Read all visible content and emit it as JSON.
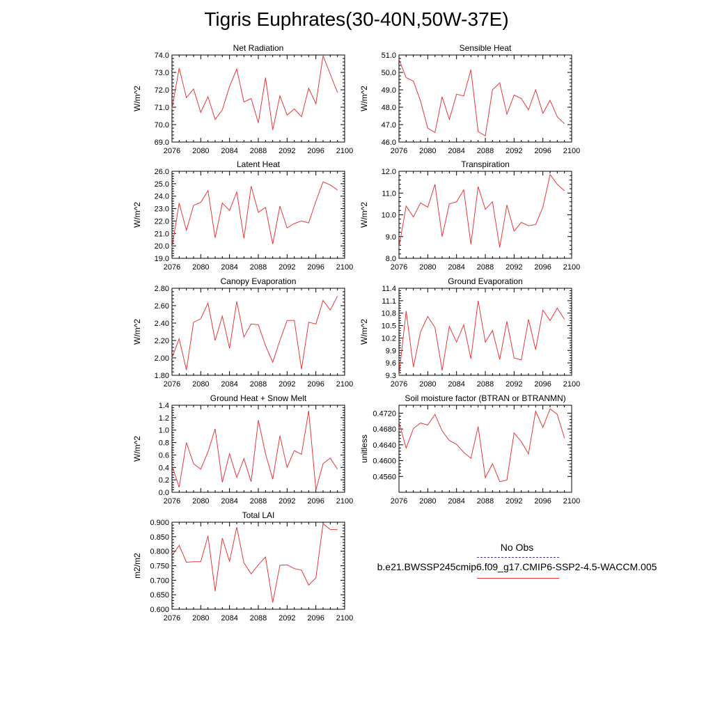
{
  "title": "Tigris Euphrates(30-40N,50W-37E)",
  "legend": {
    "obs_label": "No Obs",
    "model_label": "b.e21.BWSSP245cmip6.f09_g17.CMIP6-SSP2-4.5-WACCM.005",
    "obs_color": "#3b3b9b",
    "model_color": "#e8383b"
  },
  "chart_data": [
    {
      "type": "line",
      "title": "Net Radiation",
      "ylabel": "W/m^2",
      "xlabel": "",
      "xlim": [
        2076,
        2100
      ],
      "ylim": [
        69.0,
        74.0
      ],
      "xticks": [
        2076,
        2080,
        2084,
        2088,
        2092,
        2096,
        2100
      ],
      "yticks": [
        69.0,
        70.0,
        71.0,
        72.0,
        73.0,
        74.0
      ],
      "ytick_labels": [
        "69.0",
        "70.0",
        "71.0",
        "72.0",
        "73.0",
        "74.0"
      ],
      "x": [
        2076,
        2077,
        2078,
        2079,
        2080,
        2081,
        2082,
        2083,
        2084,
        2085,
        2086,
        2087,
        2088,
        2089,
        2090,
        2091,
        2092,
        2093,
        2094,
        2095,
        2096,
        2097,
        2098,
        2099
      ],
      "values": [
        70.9,
        73.25,
        71.55,
        72.05,
        70.7,
        71.6,
        70.3,
        70.85,
        72.2,
        73.2,
        71.3,
        71.5,
        70.1,
        72.7,
        69.7,
        71.65,
        70.55,
        70.9,
        70.45,
        72.1,
        71.2,
        73.95,
        72.9,
        71.85
      ]
    },
    {
      "type": "line",
      "title": "Sensible Heat",
      "ylabel": "W/m^2",
      "xlabel": "",
      "xlim": [
        2076,
        2100
      ],
      "ylim": [
        46.0,
        51.0
      ],
      "xticks": [
        2076,
        2080,
        2084,
        2088,
        2092,
        2096,
        2100
      ],
      "yticks": [
        46.0,
        47.0,
        48.0,
        49.0,
        50.0,
        51.0
      ],
      "ytick_labels": [
        "46.0",
        "47.0",
        "48.0",
        "49.0",
        "50.0",
        "51.0"
      ],
      "x": [
        2076,
        2077,
        2078,
        2079,
        2080,
        2081,
        2082,
        2083,
        2084,
        2085,
        2086,
        2087,
        2088,
        2089,
        2090,
        2091,
        2092,
        2093,
        2094,
        2095,
        2096,
        2097,
        2098,
        2099
      ],
      "values": [
        50.75,
        49.7,
        49.5,
        48.35,
        46.8,
        46.55,
        48.6,
        47.3,
        48.75,
        48.65,
        50.15,
        46.6,
        46.35,
        49.0,
        49.4,
        47.6,
        48.7,
        48.5,
        47.85,
        49.0,
        47.65,
        48.4,
        47.45,
        47.05
      ]
    },
    {
      "type": "line",
      "title": "Latent Heat",
      "ylabel": "W/m^2",
      "xlabel": "",
      "xlim": [
        2076,
        2100
      ],
      "ylim": [
        19.0,
        26.0
      ],
      "xticks": [
        2076,
        2080,
        2084,
        2088,
        2092,
        2096,
        2100
      ],
      "yticks": [
        19.0,
        20.0,
        21.0,
        22.0,
        23.0,
        24.0,
        25.0,
        26.0
      ],
      "ytick_labels": [
        "19.0",
        "20.0",
        "21.0",
        "22.0",
        "23.0",
        "24.0",
        "25.0",
        "26.0"
      ],
      "x": [
        2076,
        2077,
        2078,
        2079,
        2080,
        2081,
        2082,
        2083,
        2084,
        2085,
        2086,
        2087,
        2088,
        2089,
        2090,
        2091,
        2092,
        2093,
        2094,
        2095,
        2096,
        2097,
        2098,
        2099
      ],
      "values": [
        19.85,
        23.45,
        21.25,
        23.25,
        23.5,
        24.45,
        20.65,
        23.45,
        22.85,
        24.35,
        20.6,
        24.8,
        22.7,
        23.1,
        20.15,
        23.2,
        21.45,
        21.8,
        22.0,
        21.85,
        23.6,
        25.15,
        24.9,
        24.5
      ]
    },
    {
      "type": "line",
      "title": "Transpiration",
      "ylabel": "W/m^2",
      "xlabel": "",
      "xlim": [
        2076,
        2100
      ],
      "ylim": [
        8.0,
        12.0
      ],
      "xticks": [
        2076,
        2080,
        2084,
        2088,
        2092,
        2096,
        2100
      ],
      "yticks": [
        8.0,
        9.0,
        10.0,
        11.0,
        12.0
      ],
      "ytick_labels": [
        "8.0",
        "9.0",
        "10.0",
        "11.0",
        "12.0"
      ],
      "x": [
        2076,
        2077,
        2078,
        2079,
        2080,
        2081,
        2082,
        2083,
        2084,
        2085,
        2086,
        2087,
        2088,
        2089,
        2090,
        2091,
        2092,
        2093,
        2094,
        2095,
        2096,
        2097,
        2098,
        2099
      ],
      "values": [
        8.5,
        10.4,
        9.9,
        10.55,
        10.35,
        11.4,
        9.0,
        10.5,
        10.6,
        11.15,
        8.65,
        11.3,
        10.25,
        10.6,
        8.5,
        10.45,
        9.25,
        9.65,
        9.5,
        9.55,
        10.35,
        11.85,
        11.4,
        11.1
      ]
    },
    {
      "type": "line",
      "title": "Canopy Evaporation",
      "ylabel": "W/m^2",
      "xlabel": "",
      "xlim": [
        2076,
        2100
      ],
      "ylim": [
        1.8,
        2.8
      ],
      "xticks": [
        2076,
        2080,
        2084,
        2088,
        2092,
        2096,
        2100
      ],
      "yticks": [
        1.8,
        2.0,
        2.2,
        2.4,
        2.6,
        2.8
      ],
      "ytick_labels": [
        "1.80",
        "2.00",
        "2.20",
        "2.40",
        "2.60",
        "2.80"
      ],
      "x": [
        2076,
        2077,
        2078,
        2079,
        2080,
        2081,
        2082,
        2083,
        2084,
        2085,
        2086,
        2087,
        2088,
        2089,
        2090,
        2091,
        2092,
        2093,
        2094,
        2095,
        2096,
        2097,
        2098,
        2099
      ],
      "values": [
        2.0,
        2.22,
        1.86,
        2.41,
        2.45,
        2.63,
        2.2,
        2.48,
        2.11,
        2.65,
        2.24,
        2.39,
        2.38,
        2.14,
        1.95,
        2.2,
        2.43,
        2.43,
        1.87,
        2.41,
        2.39,
        2.66,
        2.55,
        2.71
      ]
    },
    {
      "type": "line",
      "title": "Ground Evaporation",
      "ylabel": "W/m^2",
      "xlabel": "",
      "xlim": [
        2076,
        2100
      ],
      "ylim": [
        9.3,
        11.4
      ],
      "xticks": [
        2076,
        2080,
        2084,
        2088,
        2092,
        2096,
        2100
      ],
      "yticks": [
        9.3,
        9.6,
        9.9,
        10.2,
        10.5,
        10.8,
        11.1,
        11.4
      ],
      "ytick_labels": [
        "9.3",
        "9.6",
        "9.9",
        "10.2",
        "10.5",
        "10.8",
        "11.1",
        "11.4"
      ],
      "x": [
        2076,
        2077,
        2078,
        2079,
        2080,
        2081,
        2082,
        2083,
        2084,
        2085,
        2086,
        2087,
        2088,
        2089,
        2090,
        2091,
        2092,
        2093,
        2094,
        2095,
        2096,
        2097,
        2098,
        2099
      ],
      "values": [
        9.3,
        10.85,
        9.5,
        10.35,
        10.72,
        10.45,
        9.42,
        10.48,
        10.1,
        10.52,
        9.7,
        11.1,
        10.1,
        10.38,
        9.68,
        10.6,
        9.72,
        9.67,
        10.65,
        9.92,
        10.87,
        10.62,
        10.92,
        10.65
      ]
    },
    {
      "type": "line",
      "title": "Ground Heat + Snow Melt",
      "ylabel": "W/m^2",
      "xlabel": "",
      "xlim": [
        2076,
        2100
      ],
      "ylim": [
        0.0,
        1.4
      ],
      "xticks": [
        2076,
        2080,
        2084,
        2088,
        2092,
        2096,
        2100
      ],
      "yticks": [
        0.0,
        0.2,
        0.4,
        0.6,
        0.8,
        1.0,
        1.2,
        1.4
      ],
      "ytick_labels": [
        "0.0",
        "0.2",
        "0.4",
        "0.6",
        "0.8",
        "1.0",
        "1.2",
        "1.4"
      ],
      "x": [
        2076,
        2077,
        2078,
        2079,
        2080,
        2081,
        2082,
        2083,
        2084,
        2085,
        2086,
        2087,
        2088,
        2089,
        2090,
        2091,
        2092,
        2093,
        2094,
        2095,
        2096,
        2097,
        2098,
        2099
      ],
      "values": [
        0.43,
        0.08,
        0.8,
        0.46,
        0.37,
        0.65,
        1.02,
        0.16,
        0.62,
        0.24,
        0.54,
        0.17,
        1.16,
        0.62,
        0.21,
        0.91,
        0.4,
        0.67,
        0.61,
        1.31,
        0.04,
        0.46,
        0.55,
        0.37
      ]
    },
    {
      "type": "line",
      "title": "Soil moisture factor (BTRAN or BTRANMN)",
      "ylabel": "unitless",
      "xlabel": "",
      "xlim": [
        2076,
        2100
      ],
      "ylim": [
        0.452,
        0.474
      ],
      "xticks": [
        2076,
        2080,
        2084,
        2088,
        2092,
        2096,
        2100
      ],
      "yticks": [
        0.456,
        0.46,
        0.464,
        0.468,
        0.472
      ],
      "ytick_labels": [
        "0.4560",
        "0.4600",
        "0.4640",
        "0.4680",
        "0.4720"
      ],
      "x": [
        2076,
        2077,
        2078,
        2079,
        2080,
        2081,
        2082,
        2083,
        2084,
        2085,
        2086,
        2087,
        2088,
        2089,
        2090,
        2091,
        2092,
        2093,
        2094,
        2095,
        2096,
        2097,
        2098,
        2099
      ],
      "values": [
        0.4697,
        0.4632,
        0.4681,
        0.4695,
        0.469,
        0.4717,
        0.4675,
        0.4651,
        0.4641,
        0.4621,
        0.4606,
        0.4686,
        0.4557,
        0.4592,
        0.4547,
        0.4551,
        0.467,
        0.4648,
        0.4617,
        0.4725,
        0.4684,
        0.4731,
        0.4717,
        0.4657
      ]
    },
    {
      "type": "line",
      "title": "Total LAI",
      "ylabel": "m2/m2",
      "xlabel": "",
      "xlim": [
        2076,
        2100
      ],
      "ylim": [
        0.6,
        0.9
      ],
      "xticks": [
        2076,
        2080,
        2084,
        2088,
        2092,
        2096,
        2100
      ],
      "yticks": [
        0.6,
        0.65,
        0.7,
        0.75,
        0.8,
        0.85,
        0.9
      ],
      "ytick_labels": [
        "0.600",
        "0.650",
        "0.700",
        "0.750",
        "0.800",
        "0.850",
        "0.900"
      ],
      "x": [
        2076,
        2077,
        2078,
        2079,
        2080,
        2081,
        2082,
        2083,
        2084,
        2085,
        2086,
        2087,
        2088,
        2089,
        2090,
        2091,
        2092,
        2093,
        2094,
        2095,
        2096,
        2097,
        2098,
        2099
      ],
      "values": [
        0.785,
        0.82,
        0.762,
        0.764,
        0.764,
        0.853,
        0.662,
        0.845,
        0.765,
        0.883,
        0.76,
        0.722,
        0.753,
        0.78,
        0.623,
        0.752,
        0.753,
        0.74,
        0.735,
        0.683,
        0.708,
        0.895,
        0.875,
        0.874
      ]
    }
  ]
}
